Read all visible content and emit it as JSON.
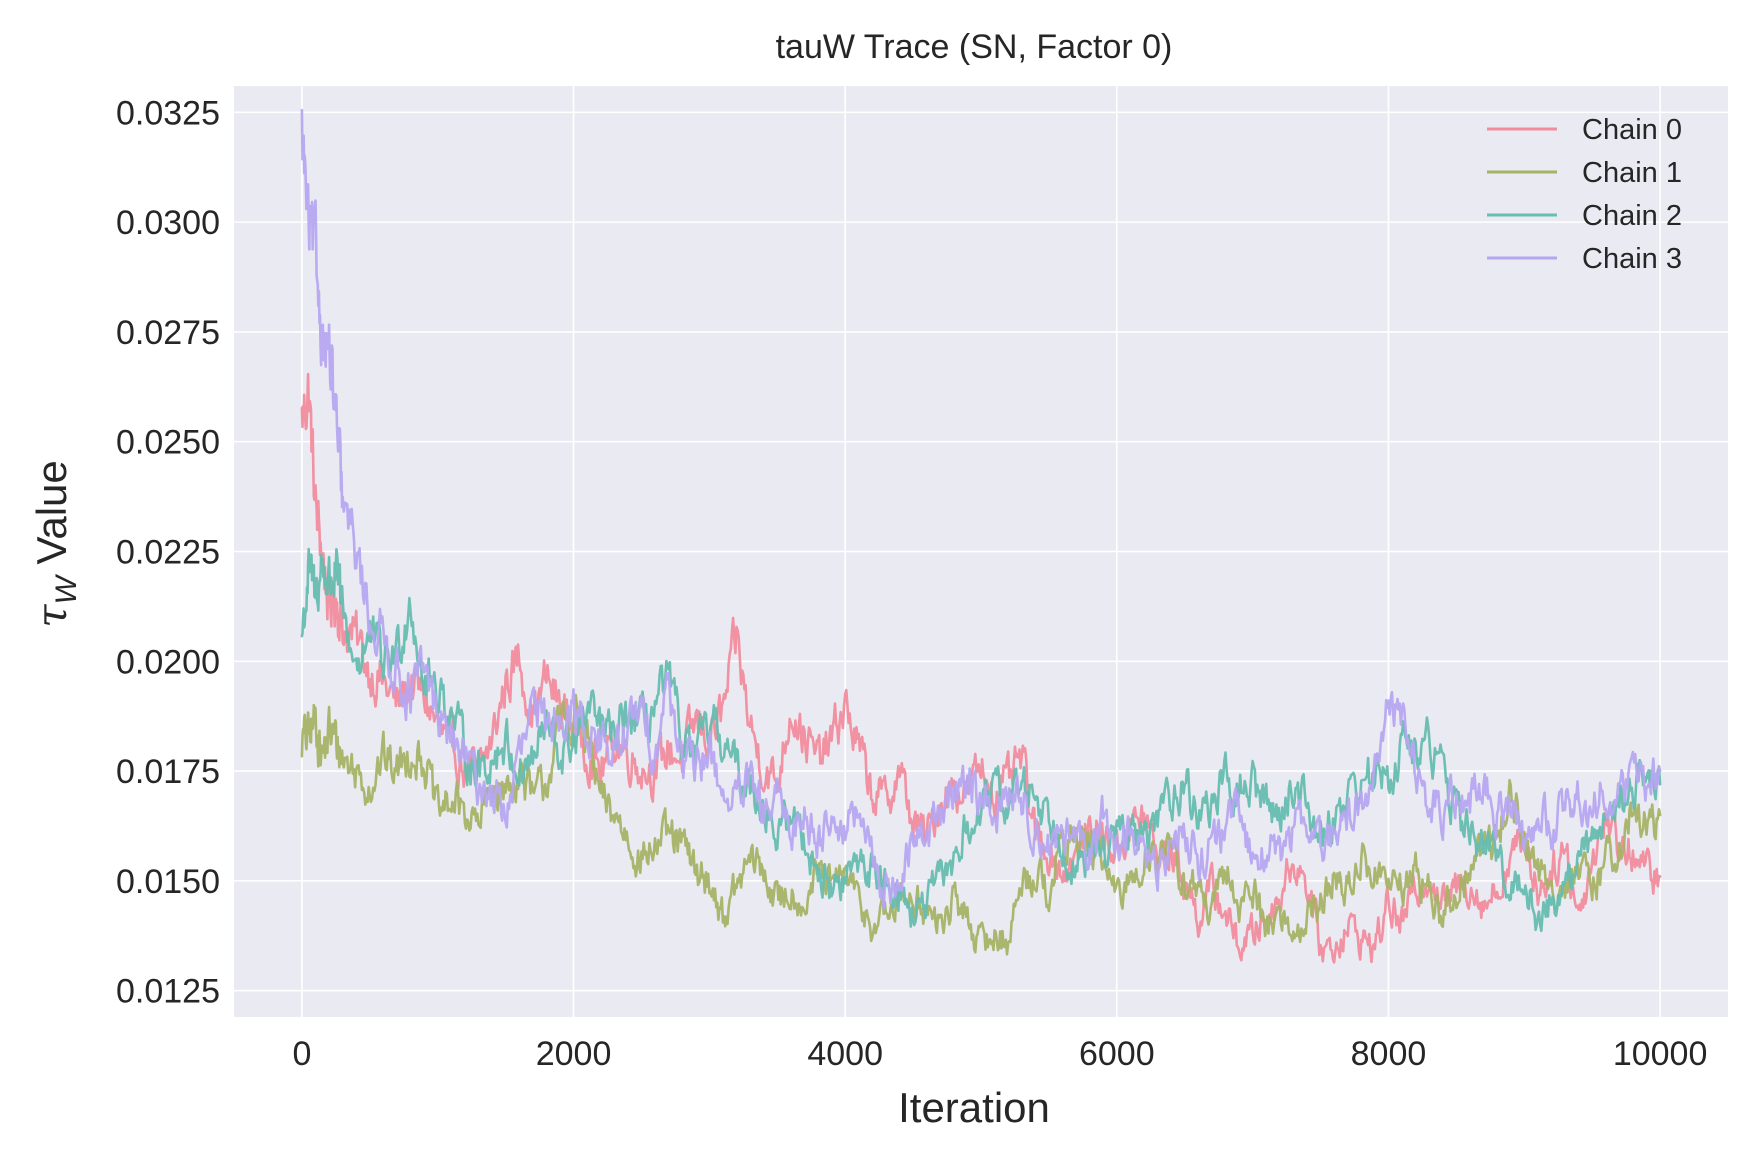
{
  "chart_data": {
    "type": "line",
    "title": "tauW Trace (SN, Factor 0)",
    "xlabel": "Iteration",
    "ylabel_symbol": "τ",
    "ylabel_subscript": "W",
    "ylabel_suffix": " Value",
    "xlim": [
      -500,
      10500
    ],
    "ylim": [
      0.0119,
      0.0331
    ],
    "x_ticks": [
      0,
      2000,
      4000,
      6000,
      8000,
      10000
    ],
    "x_tick_labels": [
      "0",
      "2000",
      "4000",
      "6000",
      "8000",
      "10000"
    ],
    "y_ticks": [
      0.0125,
      0.015,
      0.0175,
      0.02,
      0.0225,
      0.025,
      0.0275,
      0.03,
      0.0325
    ],
    "y_tick_labels": [
      "0.0125",
      "0.0150",
      "0.0175",
      "0.0200",
      "0.0225",
      "0.0250",
      "0.0275",
      "0.0300",
      "0.0325"
    ],
    "grid": true,
    "legend_position": "top-right",
    "background": "#eaeaf2",
    "x": [
      0,
      50,
      100,
      150,
      200,
      250,
      300,
      400,
      500,
      600,
      700,
      800,
      900,
      1000,
      1100,
      1200,
      1300,
      1400,
      1500,
      1600,
      1700,
      1800,
      1900,
      2000,
      2100,
      2200,
      2300,
      2400,
      2500,
      2600,
      2700,
      2800,
      2900,
      3000,
      3100,
      3200,
      3300,
      3400,
      3500,
      3600,
      3700,
      3800,
      3900,
      4000,
      4100,
      4200,
      4300,
      4400,
      4500,
      4600,
      4700,
      4800,
      4900,
      5000,
      5100,
      5200,
      5300,
      5400,
      5500,
      5600,
      5700,
      5800,
      5900,
      6000,
      6100,
      6200,
      6300,
      6400,
      6500,
      6600,
      6700,
      6800,
      6900,
      7000,
      7100,
      7200,
      7300,
      7400,
      7500,
      7600,
      7700,
      7800,
      7900,
      8000,
      8100,
      8200,
      8300,
      8400,
      8500,
      8600,
      8700,
      8800,
      8900,
      9000,
      9100,
      9200,
      9300,
      9400,
      9500,
      9600,
      9700,
      9800,
      9900,
      10000
    ],
    "series": [
      {
        "name": "Chain 0",
        "color": "#f18c9c",
        "values": [
          0.0255,
          0.0262,
          0.0235,
          0.0225,
          0.0212,
          0.0215,
          0.0208,
          0.0205,
          0.0198,
          0.0195,
          0.019,
          0.0195,
          0.0192,
          0.0185,
          0.018,
          0.0176,
          0.0174,
          0.0182,
          0.0195,
          0.0201,
          0.0188,
          0.0196,
          0.019,
          0.0185,
          0.018,
          0.0175,
          0.0182,
          0.0179,
          0.0176,
          0.0175,
          0.018,
          0.0178,
          0.0186,
          0.0183,
          0.0188,
          0.0205,
          0.0185,
          0.0176,
          0.0172,
          0.019,
          0.0183,
          0.0177,
          0.0182,
          0.019,
          0.018,
          0.017,
          0.0168,
          0.0175,
          0.0163,
          0.016,
          0.0168,
          0.0172,
          0.017,
          0.0176,
          0.017,
          0.0172,
          0.0178,
          0.016,
          0.0157,
          0.0152,
          0.0155,
          0.0162,
          0.016,
          0.0157,
          0.0162,
          0.0165,
          0.0155,
          0.0157,
          0.015,
          0.0142,
          0.0148,
          0.0143,
          0.0135,
          0.0138,
          0.0142,
          0.0147,
          0.0155,
          0.015,
          0.0135,
          0.0135,
          0.014,
          0.0137,
          0.0135,
          0.0145,
          0.014,
          0.0148,
          0.0152,
          0.0145,
          0.0148,
          0.015,
          0.0145,
          0.0148,
          0.0155,
          0.016,
          0.0148,
          0.0152,
          0.0158,
          0.0142,
          0.0155,
          0.0165,
          0.0158,
          0.0157,
          0.0152,
          0.0151
        ]
      },
      {
        "name": "Chain 1",
        "color": "#a6b366",
        "values": [
          0.0182,
          0.0183,
          0.0187,
          0.0178,
          0.0184,
          0.0182,
          0.0178,
          0.0175,
          0.0172,
          0.0178,
          0.0175,
          0.018,
          0.0178,
          0.0165,
          0.0168,
          0.0166,
          0.0162,
          0.0172,
          0.017,
          0.0175,
          0.0168,
          0.0173,
          0.0185,
          0.0188,
          0.0182,
          0.0168,
          0.0165,
          0.016,
          0.0155,
          0.0158,
          0.016,
          0.0158,
          0.0152,
          0.015,
          0.0142,
          0.0148,
          0.0155,
          0.0152,
          0.0145,
          0.0148,
          0.0145,
          0.0152,
          0.0148,
          0.0152,
          0.0145,
          0.014,
          0.0142,
          0.0145,
          0.0148,
          0.0142,
          0.014,
          0.0145,
          0.0142,
          0.0135,
          0.0138,
          0.0136,
          0.015,
          0.0152,
          0.0148,
          0.0158,
          0.016,
          0.0158,
          0.0155,
          0.0145,
          0.015,
          0.0155,
          0.0158,
          0.0155,
          0.015,
          0.0148,
          0.0142,
          0.0152,
          0.0145,
          0.0148,
          0.014,
          0.0142,
          0.0138,
          0.0142,
          0.0145,
          0.015,
          0.0148,
          0.0155,
          0.0152,
          0.015,
          0.0148,
          0.0152,
          0.0148,
          0.0142,
          0.0148,
          0.0152,
          0.0158,
          0.016,
          0.017,
          0.016,
          0.0152,
          0.0148,
          0.015,
          0.0152,
          0.0148,
          0.0155,
          0.0158,
          0.0165,
          0.0162,
          0.0165
        ]
      },
      {
        "name": "Chain 2",
        "color": "#66bdb0",
        "values": [
          0.0206,
          0.022,
          0.0215,
          0.0222,
          0.0218,
          0.022,
          0.021,
          0.02,
          0.0205,
          0.02,
          0.0202,
          0.0215,
          0.0195,
          0.0195,
          0.0188,
          0.018,
          0.0175,
          0.0178,
          0.0182,
          0.0175,
          0.0178,
          0.0185,
          0.0178,
          0.0182,
          0.0188,
          0.0185,
          0.0182,
          0.0188,
          0.0185,
          0.019,
          0.0195,
          0.0182,
          0.0178,
          0.0185,
          0.0182,
          0.0175,
          0.0172,
          0.0168,
          0.016,
          0.0165,
          0.016,
          0.0152,
          0.0148,
          0.015,
          0.0155,
          0.0152,
          0.015,
          0.0148,
          0.0142,
          0.0145,
          0.015,
          0.0155,
          0.0162,
          0.0165,
          0.017,
          0.0168,
          0.0172,
          0.017,
          0.0165,
          0.016,
          0.0152,
          0.0155,
          0.0158,
          0.016,
          0.0162,
          0.0158,
          0.0165,
          0.017,
          0.0172,
          0.0165,
          0.0168,
          0.0172,
          0.017,
          0.0172,
          0.0168,
          0.0165,
          0.0172,
          0.0168,
          0.016,
          0.0165,
          0.017,
          0.0172,
          0.0175,
          0.0172,
          0.0182,
          0.0178,
          0.0182,
          0.0175,
          0.0165,
          0.0162,
          0.0158,
          0.0155,
          0.015,
          0.0148,
          0.0142,
          0.0145,
          0.0148,
          0.0155,
          0.016,
          0.0165,
          0.0168,
          0.0172,
          0.0175,
          0.0172
        ]
      },
      {
        "name": "Chain 3",
        "color": "#b6a6f0",
        "values": [
          0.032,
          0.0298,
          0.0292,
          0.0275,
          0.027,
          0.0255,
          0.0235,
          0.0225,
          0.021,
          0.0205,
          0.0198,
          0.0192,
          0.0198,
          0.0188,
          0.0182,
          0.0178,
          0.0172,
          0.017,
          0.0165,
          0.0178,
          0.0188,
          0.0185,
          0.019,
          0.0188,
          0.0185,
          0.0182,
          0.0178,
          0.0185,
          0.0188,
          0.018,
          0.0195,
          0.0178,
          0.0175,
          0.018,
          0.017,
          0.0168,
          0.0172,
          0.0165,
          0.0168,
          0.0162,
          0.0165,
          0.016,
          0.0165,
          0.0162,
          0.0165,
          0.0155,
          0.0148,
          0.015,
          0.0158,
          0.0162,
          0.0165,
          0.017,
          0.0175,
          0.0168,
          0.0165,
          0.017,
          0.0168,
          0.0162,
          0.0158,
          0.0162,
          0.0158,
          0.0155,
          0.0165,
          0.0158,
          0.0162,
          0.0155,
          0.0152,
          0.0158,
          0.0162,
          0.0155,
          0.0158,
          0.0162,
          0.0165,
          0.0155,
          0.0158,
          0.0155,
          0.0162,
          0.0165,
          0.0158,
          0.016,
          0.0165,
          0.0168,
          0.0175,
          0.019,
          0.0188,
          0.0175,
          0.0168,
          0.0165,
          0.017,
          0.0168,
          0.0172,
          0.0165,
          0.0168,
          0.016,
          0.0165,
          0.0162,
          0.0168,
          0.017,
          0.0165,
          0.0172,
          0.0168,
          0.0175,
          0.0172,
          0.0175
        ]
      }
    ]
  }
}
